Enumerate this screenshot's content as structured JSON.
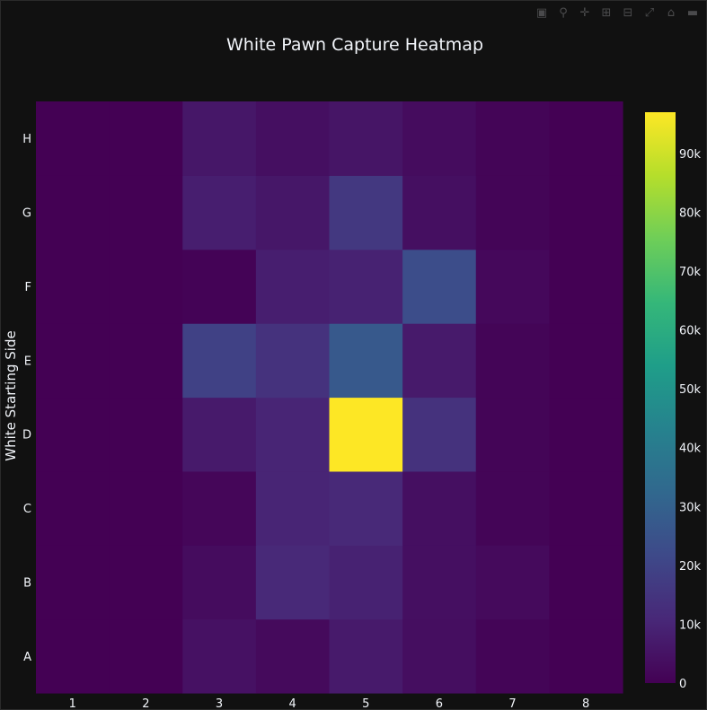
{
  "modebar": [
    {
      "name": "camera-icon",
      "glyph": "▣"
    },
    {
      "name": "zoom-icon",
      "glyph": "⚲"
    },
    {
      "name": "pan-icon",
      "glyph": "✛"
    },
    {
      "name": "zoom-in-icon",
      "glyph": "⊞"
    },
    {
      "name": "zoom-out-icon",
      "glyph": "⊟"
    },
    {
      "name": "autoscale-icon",
      "glyph": "⤢"
    },
    {
      "name": "reset-axes-icon",
      "glyph": "⌂"
    },
    {
      "name": "plotly-logo-icon",
      "glyph": "▬"
    }
  ],
  "chart_data": {
    "type": "heatmap",
    "title": "White Pawn Capture Heatmap",
    "xlabel": "",
    "ylabel": "White Starting Side",
    "x": [
      "1",
      "2",
      "3",
      "4",
      "5",
      "6",
      "7",
      "8"
    ],
    "y": [
      "A",
      "B",
      "C",
      "D",
      "E",
      "F",
      "G",
      "H"
    ],
    "z": [
      [
        0,
        0,
        4500,
        2500,
        7000,
        3500,
        1000,
        0
      ],
      [
        0,
        0,
        3000,
        11000,
        9000,
        4000,
        2500,
        0
      ],
      [
        0,
        0,
        1500,
        10000,
        11000,
        4000,
        1000,
        0
      ],
      [
        0,
        0,
        7000,
        10000,
        97000,
        14000,
        1000,
        0
      ],
      [
        0,
        0,
        19000,
        14000,
        27000,
        7000,
        1000,
        0
      ],
      [
        0,
        0,
        500,
        8000,
        9000,
        23000,
        2000,
        0
      ],
      [
        0,
        0,
        8000,
        6000,
        16000,
        4000,
        1000,
        0
      ],
      [
        0,
        0,
        6000,
        4000,
        5500,
        3000,
        1000,
        0
      ]
    ],
    "zlim": [
      0,
      97000
    ],
    "colorscale": "viridis",
    "colorbar_ticks": [
      "0",
      "10k",
      "20k",
      "30k",
      "40k",
      "50k",
      "60k",
      "70k",
      "80k",
      "90k"
    ],
    "colorbar_values": [
      0,
      10000,
      20000,
      30000,
      40000,
      50000,
      60000,
      70000,
      80000,
      90000
    ],
    "grid": false,
    "background": "#111111"
  }
}
